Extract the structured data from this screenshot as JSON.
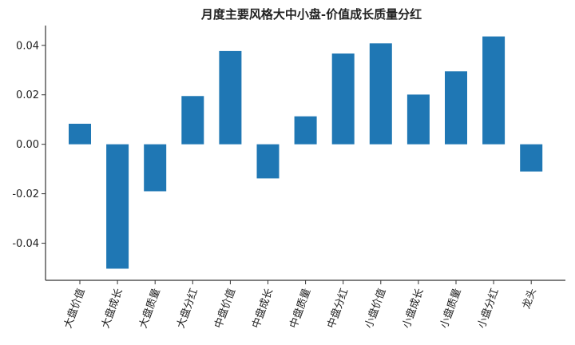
{
  "chart_data": {
    "type": "bar",
    "title": "月度主要风格大中小盘-价值成长质量分红",
    "xlabel": "",
    "ylabel": "",
    "categories": [
      "大盘价值",
      "大盘成长",
      "大盘质量",
      "大盘分红",
      "中盘价值",
      "中盘成长",
      "中盘质量",
      "中盘分红",
      "小盘价值",
      "小盘成长",
      "小盘质量",
      "小盘分红",
      "龙头"
    ],
    "values": [
      0.0083,
      -0.0503,
      -0.019,
      0.0195,
      0.0377,
      -0.0138,
      0.0113,
      0.0367,
      0.0408,
      0.0201,
      0.0295,
      0.0436,
      -0.011
    ],
    "ylim": [
      -0.055,
      0.048
    ],
    "yticks": [
      -0.04,
      -0.02,
      0.0,
      0.02,
      0.04
    ],
    "ytick_labels": [
      "-0.04",
      "-0.02",
      "0.00",
      "0.02",
      "0.04"
    ],
    "grid": false,
    "bar_color": "#1f77b4",
    "axis_color": "#333333"
  }
}
